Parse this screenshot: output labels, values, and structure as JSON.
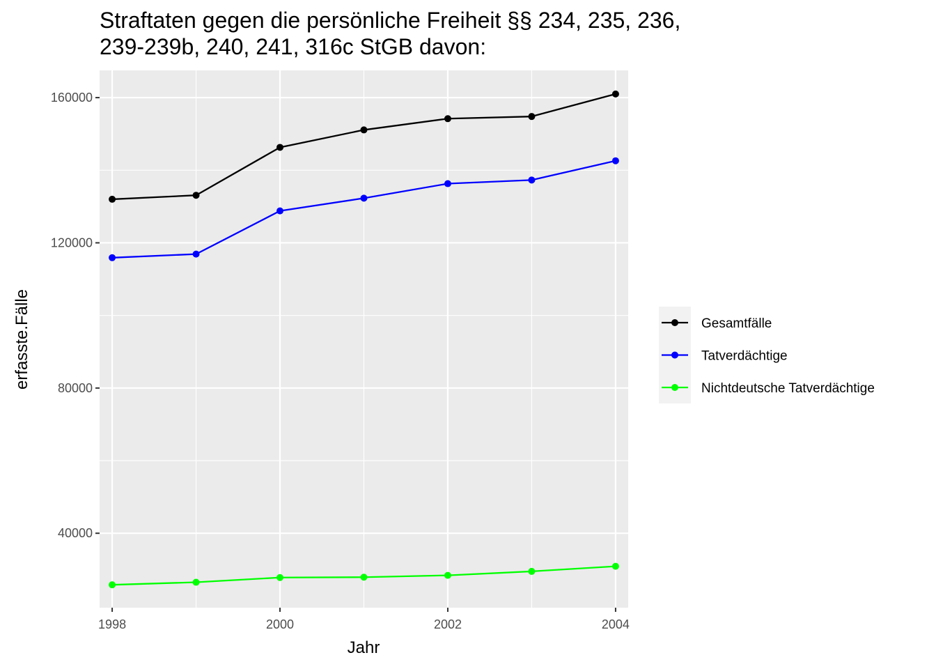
{
  "chart_data": {
    "type": "line",
    "title": "Straftaten gegen die persönliche Freiheit §§ 234, 235, 236, 239-239b, 240, 241, 316c StGB davon:",
    "title_lines": [
      "Straftaten gegen die persönliche Freiheit §§ 234, 235, 236,",
      "239-239b, 240, 241, 316c StGB davon:"
    ],
    "xlabel": "Jahr",
    "ylabel": "erfasste.Fälle",
    "x": [
      1998,
      1999,
      2000,
      2001,
      2002,
      2003,
      2004
    ],
    "xlim": [
      1997.85,
      2004.15
    ],
    "ylim": [
      19500,
      167500
    ],
    "x_ticks": [
      1998,
      2000,
      2002,
      2004
    ],
    "x_tick_labels": [
      "1998",
      "2000",
      "2002",
      "2004"
    ],
    "y_ticks": [
      40000,
      80000,
      120000,
      160000
    ],
    "y_tick_labels": [
      "40000",
      "80000",
      "120000",
      "160000"
    ],
    "grid": true,
    "legend_position": "right",
    "series": [
      {
        "name": "Gesamtfälle",
        "color": "#000000",
        "values": [
          132000,
          133100,
          146300,
          151100,
          154200,
          154800,
          161000
        ]
      },
      {
        "name": "Tatverdächtige",
        "color": "#0000ff",
        "values": [
          115900,
          116900,
          128800,
          132300,
          136300,
          137300,
          142600
        ]
      },
      {
        "name": "Nichtdeutsche Tatverdächtige",
        "color": "#00ff00",
        "values": [
          25800,
          26500,
          27800,
          27900,
          28400,
          29500,
          30900
        ]
      }
    ]
  }
}
